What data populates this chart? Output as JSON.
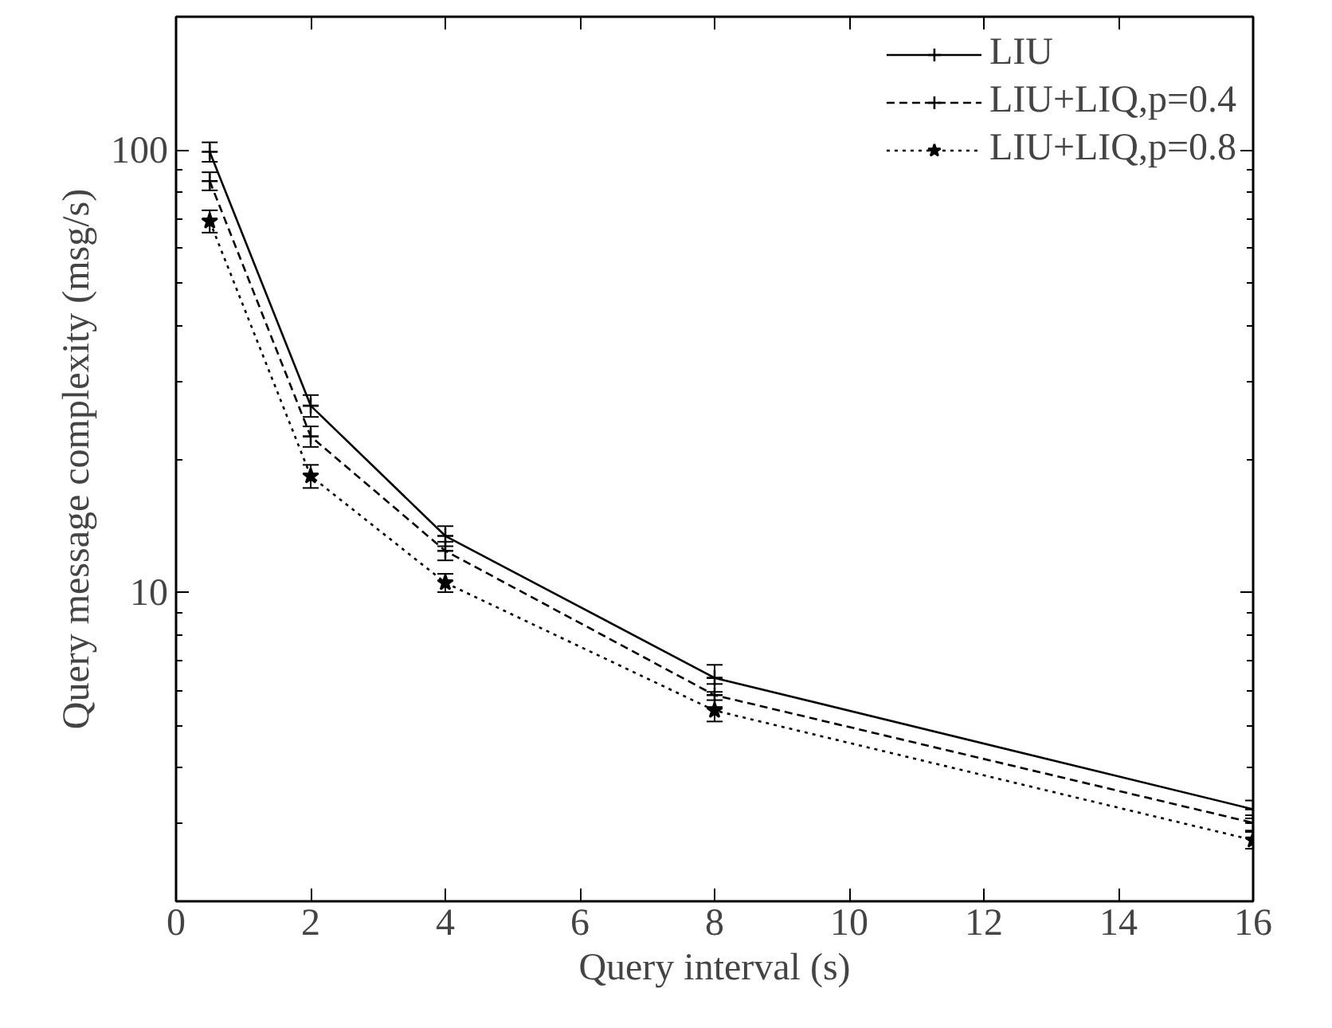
{
  "chart_data": {
    "type": "line",
    "xlabel": "Query interval (s)",
    "ylabel": "Query message complexity (msg/s)",
    "x": [
      0.5,
      2,
      4,
      8,
      16
    ],
    "series": [
      {
        "name": "LIU",
        "color": "#000000",
        "marker": "cross",
        "line_style": "solid",
        "values": [
          99,
          26.4,
          13.4,
          6.4,
          3.23
        ],
        "errors": [
          5,
          1.5,
          0.7,
          0.45,
          0.15
        ]
      },
      {
        "name": "LIU+LIQ,p=0.4",
        "color": "#000000",
        "marker": "cross",
        "line_style": "dashed",
        "values": [
          85,
          22.5,
          12.4,
          5.85,
          3.01
        ],
        "errors": [
          4,
          1.2,
          0.6,
          0.35,
          0.12
        ]
      },
      {
        "name": "LIU+LIQ,p=0.8",
        "color": "#000000",
        "marker": "star",
        "line_style": "dotted",
        "values": [
          69,
          18.3,
          10.5,
          5.4,
          2.75
        ],
        "errors": [
          4,
          1.1,
          0.5,
          0.3,
          0.12
        ]
      }
    ],
    "log": "y",
    "xlim": [
      0,
      16
    ],
    "ylim": [
      2,
      200
    ],
    "xticks": [
      0,
      2,
      4,
      6,
      8,
      10,
      12,
      14,
      16
    ],
    "yticks": [
      10,
      100
    ],
    "grid": false,
    "legend": "top right"
  }
}
